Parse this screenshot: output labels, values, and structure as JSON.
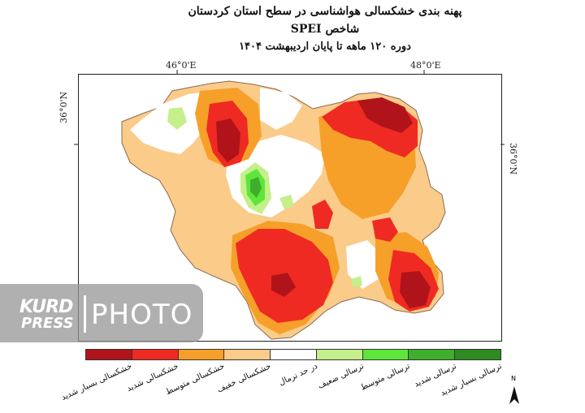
{
  "title": {
    "line1": "پهنه بندی خشکسالی هواشناسی در سطح استان کردستان",
    "line2": "شاخص SPEI",
    "line3": "دوره ۱۲۰ ماهه تا پایان اردیبهشت ۱۴۰۴"
  },
  "coordinates": {
    "lon_left": "46°0'E",
    "lon_right": "48°0'E",
    "lat_left": "36°0'N",
    "lat_right": "36°0'N"
  },
  "legend": [
    {
      "label": "خشکسالی بسیار شدید",
      "color": "#b0141a"
    },
    {
      "label": "خشکسالی شدید",
      "color": "#ef2a22"
    },
    {
      "label": "خشکسالی متوسط",
      "color": "#f6a02a"
    },
    {
      "label": "خشکسالی خفیف",
      "color": "#fbcb8a"
    },
    {
      "label": "در حد نرمال",
      "color": "#ffffff"
    },
    {
      "label": "ترسالی ضعیف",
      "color": "#c5ef8a"
    },
    {
      "label": "ترسالی متوسط",
      "color": "#5ee63a"
    },
    {
      "label": "ترسالی شدید",
      "color": "#3fae2c"
    },
    {
      "label": "ترسالی بسیار شدید",
      "color": "#2f8a22"
    }
  ],
  "north_label": "N",
  "watermark": {
    "kurd": "KURD",
    "press": "PRESS",
    "photo": "PHOTO"
  }
}
